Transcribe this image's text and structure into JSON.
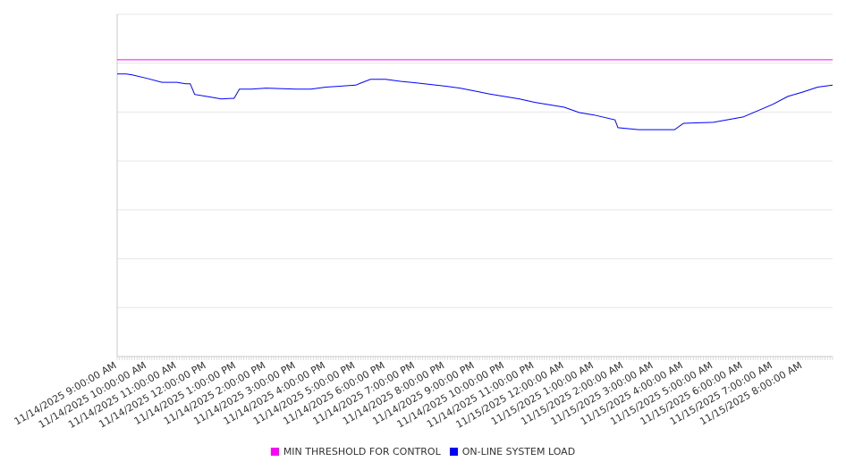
{
  "chart_data": {
    "type": "line",
    "title": "",
    "xlabel": "",
    "ylabel": "",
    "grid": true,
    "y_tick_labels_shown": false,
    "ylim": [
      0,
      7
    ],
    "xlim_hours": [
      0,
      24
    ],
    "x_tick_labels": [
      "11/14/2025 9:00:00 AM",
      "11/14/2025 10:00:00 AM",
      "11/14/2025 11:00:00 AM",
      "11/14/2025 12:00:00 PM",
      "11/14/2025 1:00:00 PM",
      "11/14/2025 2:00:00 PM",
      "11/14/2025 3:00:00 PM",
      "11/14/2025 4:00:00 PM",
      "11/14/2025 5:00:00 PM",
      "11/14/2025 6:00:00 PM",
      "11/14/2025 7:00:00 PM",
      "11/14/2025 8:00:00 PM",
      "11/14/2025 9:00:00 PM",
      "11/14/2025 10:00:00 PM",
      "11/14/2025 11:00:00 PM",
      "11/15/2025 12:00:00 AM",
      "11/15/2025 1:00:00 AM",
      "11/15/2025 2:00:00 AM",
      "11/15/2025 3:00:00 AM",
      "11/15/2025 4:00:00 AM",
      "11/15/2025 5:00:00 AM",
      "11/15/2025 6:00:00 AM",
      "11/15/2025 7:00:00 AM",
      "11/15/2025 8:00:00 AM"
    ],
    "legend_position": "bottom",
    "series": [
      {
        "name": "MIN THRESHOLD FOR CONTROL",
        "color": "#ff00ff",
        "x": [
          0,
          24
        ],
        "y": [
          6.07,
          6.07
        ]
      },
      {
        "name": "ON-LINE SYSTEM LOAD",
        "color": "#0000ff",
        "x": [
          0,
          0.3,
          0.5,
          1,
          1.5,
          2,
          2.3,
          2.45,
          2.6,
          3,
          3.5,
          3.8,
          3.92,
          4.1,
          4.5,
          5,
          6,
          6.5,
          7,
          8,
          8.2,
          8.5,
          9,
          9.5,
          10,
          11,
          11.5,
          12,
          12.5,
          13.5,
          14,
          15,
          15.5,
          16,
          16.7,
          16.8,
          17.5,
          18.5,
          18.7,
          19,
          20,
          21,
          21.5,
          22,
          22.5,
          23,
          23.5,
          24
        ],
        "y": [
          5.78,
          5.78,
          5.76,
          5.69,
          5.61,
          5.61,
          5.58,
          5.58,
          5.36,
          5.32,
          5.27,
          5.28,
          5.28,
          5.47,
          5.47,
          5.49,
          5.47,
          5.47,
          5.51,
          5.55,
          5.6,
          5.67,
          5.67,
          5.63,
          5.6,
          5.53,
          5.49,
          5.43,
          5.37,
          5.27,
          5.2,
          5.1,
          4.99,
          4.94,
          4.84,
          4.68,
          4.64,
          4.64,
          4.64,
          4.77,
          4.79,
          4.9,
          5.03,
          5.16,
          5.32,
          5.41,
          5.51,
          5.55
        ]
      }
    ]
  }
}
